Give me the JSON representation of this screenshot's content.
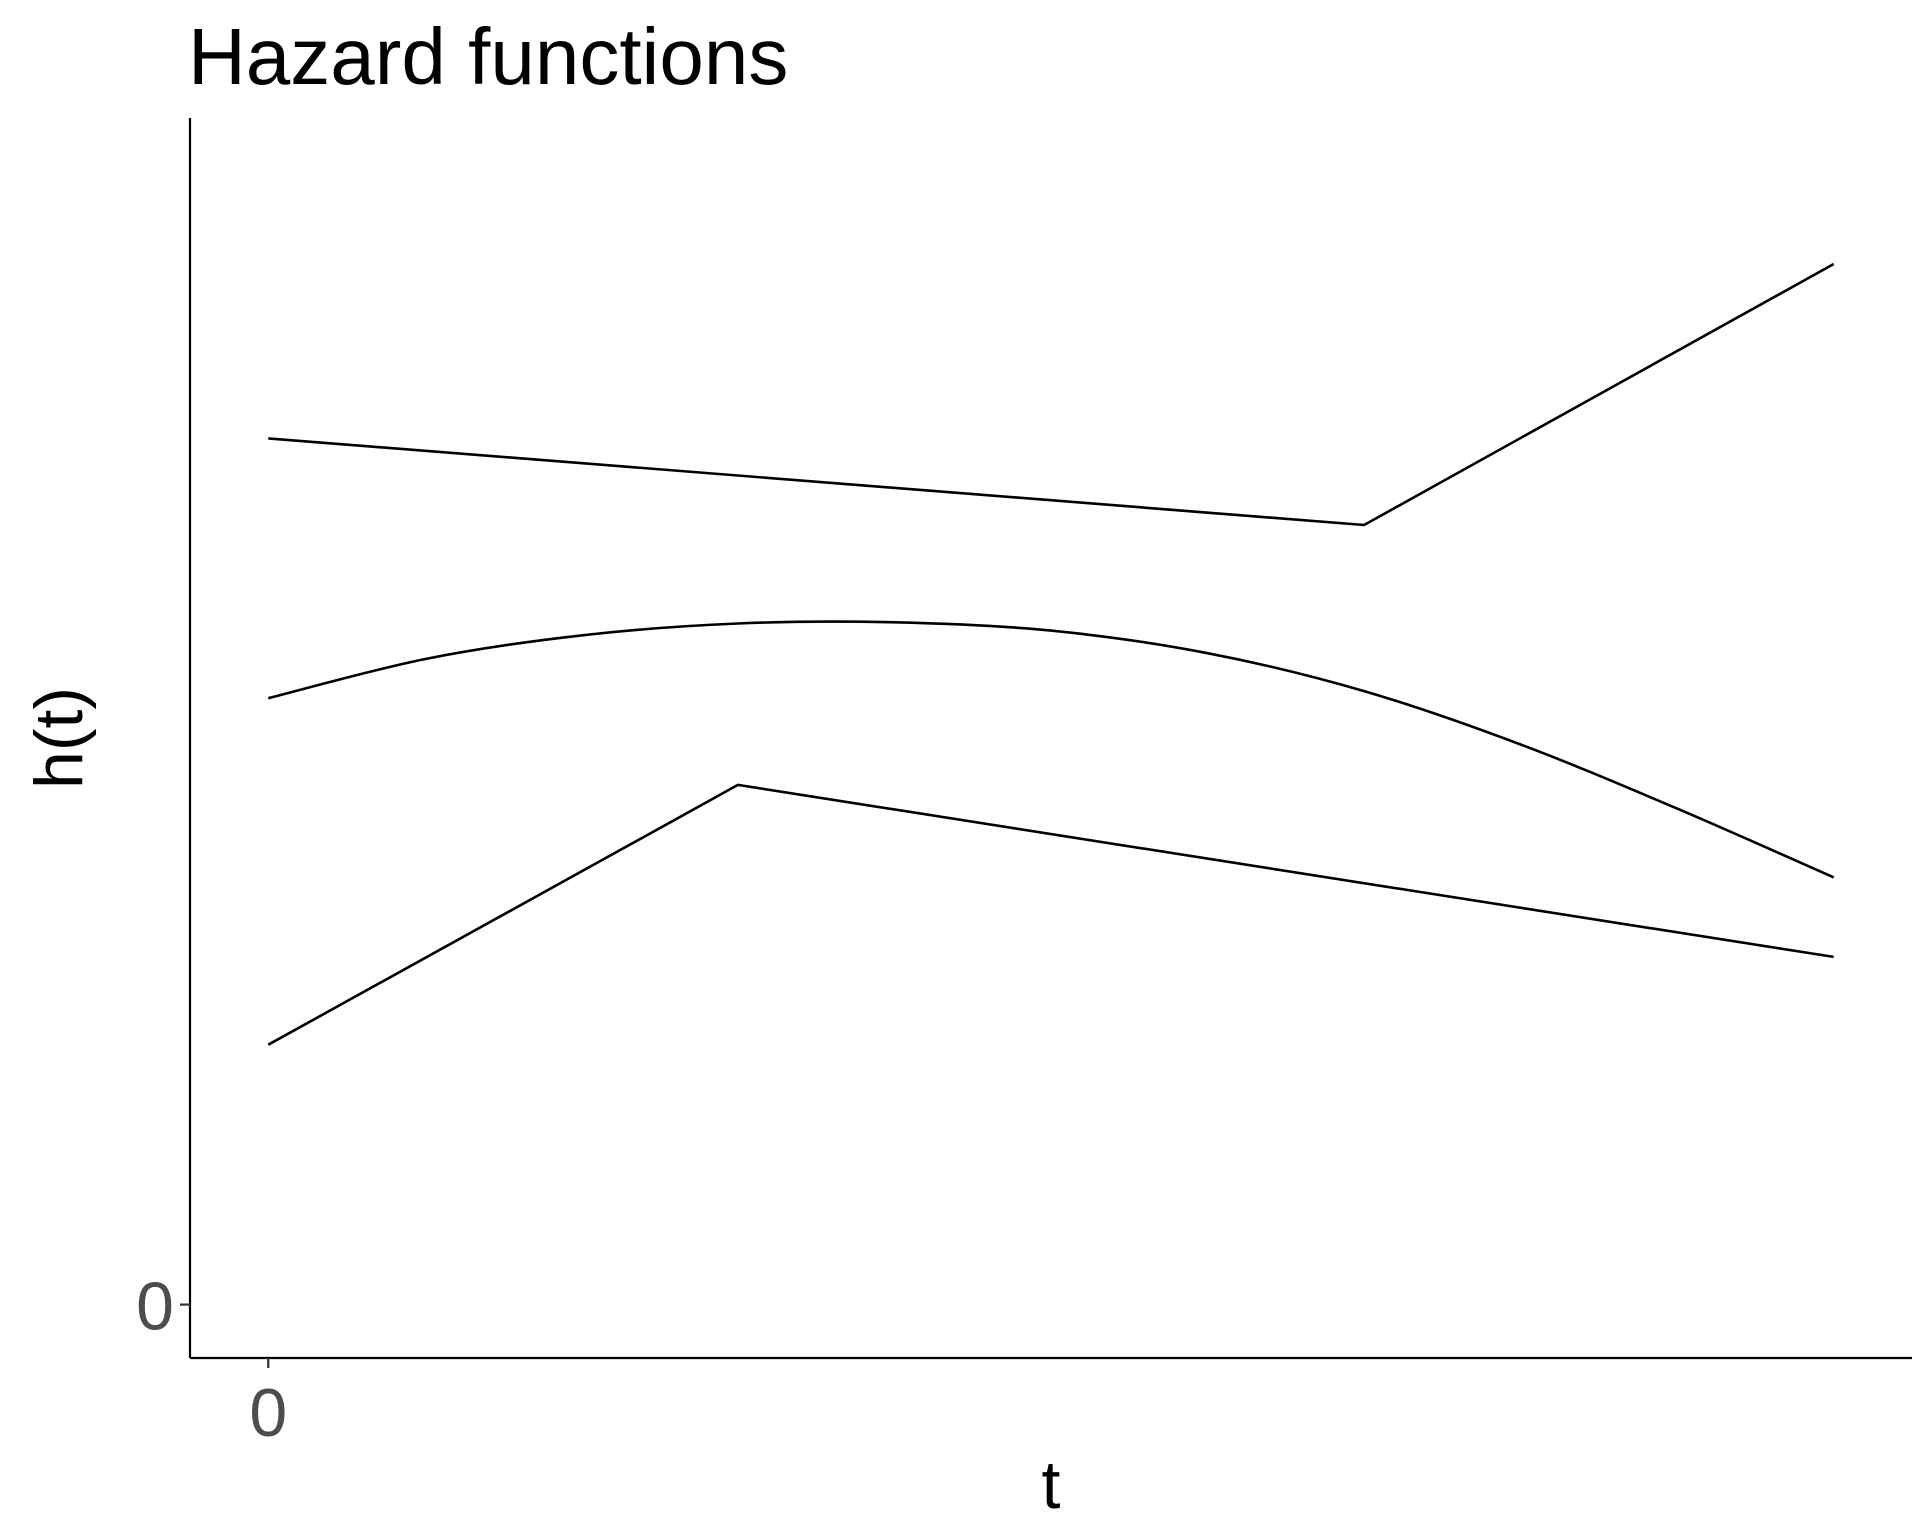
{
  "chart_data": {
    "type": "line",
    "title": "Hazard functions",
    "xlabel": "t",
    "ylabel": "h(t)",
    "x_ticks": [
      {
        "value": 0,
        "label": "0"
      }
    ],
    "y_ticks": [
      {
        "value": 0,
        "label": "0"
      }
    ],
    "xlim": [
      -0.05,
      1.05
    ],
    "ylim": [
      -0.045,
      1.0
    ],
    "grid": false,
    "legend": "none",
    "line_color": "#000000",
    "series": [
      {
        "x": [
          0,
          0.7,
          1
        ],
        "y": [
          0.73,
          0.657,
          0.877
        ]
      },
      {
        "x": [
          0,
          0.1,
          0.2,
          0.3,
          0.4,
          0.5,
          0.6,
          0.7,
          0.8,
          0.9,
          1
        ],
        "y": [
          0.511,
          0.544,
          0.564,
          0.574,
          0.575,
          0.568,
          0.549,
          0.517,
          0.472,
          0.418,
          0.36
        ]
      },
      {
        "x": [
          0,
          0.3,
          1
        ],
        "y": [
          0.219,
          0.438,
          0.293
        ]
      }
    ]
  }
}
